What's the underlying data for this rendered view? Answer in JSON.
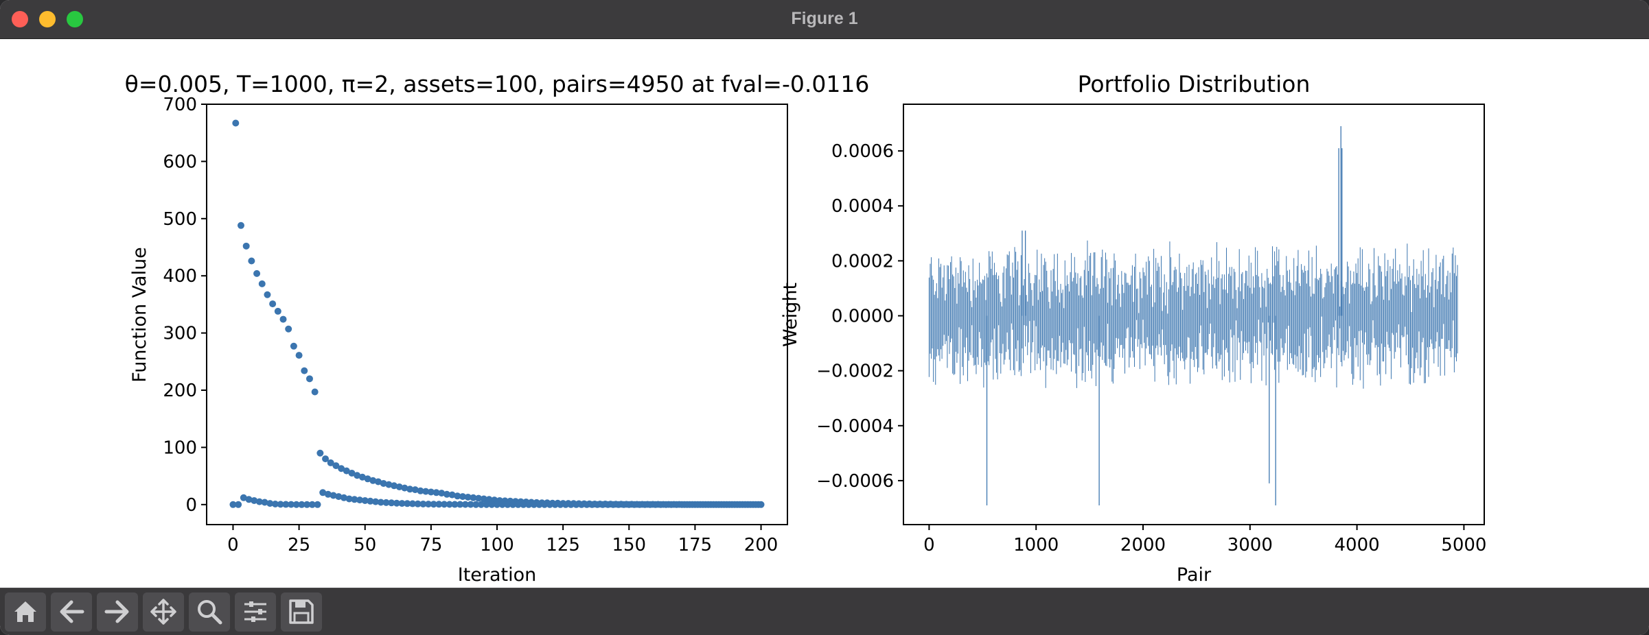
{
  "window": {
    "title": "Figure 1"
  },
  "toolbar": {
    "buttons": [
      {
        "name": "home-icon"
      },
      {
        "name": "back-arrow-icon"
      },
      {
        "name": "forward-arrow-icon"
      },
      {
        "name": "pan-move-icon"
      },
      {
        "name": "zoom-magnifier-icon"
      },
      {
        "name": "configure-subplots-icon"
      },
      {
        "name": "save-floppy-icon"
      }
    ]
  },
  "colors": {
    "series": "#3b75af",
    "frame": "#000000",
    "titlebar": "#3c3b3d",
    "toolbar": "#3a393b"
  },
  "chart_data": [
    {
      "type": "scatter",
      "title": "θ=0.005, T=1000, π=2, assets=100, pairs=4950 at fval=-0.0116",
      "xlabel": "Iteration",
      "ylabel": "Function Value",
      "xlim": [
        -10,
        210
      ],
      "ylim": [
        -35,
        700
      ],
      "xticks": [
        0,
        25,
        50,
        75,
        100,
        125,
        150,
        175,
        200
      ],
      "yticks": [
        0,
        100,
        200,
        300,
        400,
        500,
        600,
        700
      ],
      "grid": false,
      "series": [
        {
          "x": [
            1,
            3,
            5,
            7,
            9,
            11,
            13,
            15,
            17,
            19,
            21,
            23,
            25,
            27,
            29,
            31,
            33,
            35,
            37,
            39,
            41,
            43,
            45,
            47,
            49,
            51,
            53,
            55,
            57,
            59,
            61,
            63,
            65,
            67,
            69,
            71,
            73,
            75,
            77,
            79,
            81,
            83,
            85,
            87,
            89,
            91,
            93,
            95,
            97,
            99,
            101,
            103,
            105,
            107,
            109,
            111,
            113,
            115,
            117,
            119,
            121,
            123,
            125,
            127,
            129,
            131,
            133,
            135,
            137,
            139,
            141,
            143,
            145,
            147,
            149,
            151,
            153,
            155,
            157,
            159,
            161,
            163,
            165,
            167,
            169,
            171,
            173,
            175,
            177,
            179,
            181,
            183,
            185,
            187,
            189,
            191,
            193,
            195,
            197,
            199
          ],
          "y": [
            667,
            488,
            452,
            426,
            404,
            386,
            367,
            351,
            338,
            324,
            307,
            277,
            261,
            234,
            220,
            197,
            90,
            80,
            73,
            68,
            63,
            59,
            55,
            51,
            48,
            45,
            42,
            40,
            37,
            35,
            33,
            31,
            29,
            27,
            26,
            24,
            23,
            22,
            21,
            20,
            18,
            17,
            15,
            14,
            13,
            12,
            11,
            10,
            9,
            8,
            7,
            6.5,
            6,
            5.5,
            5,
            4.5,
            4,
            3.5,
            3,
            3,
            2.5,
            2.5,
            2,
            2,
            1.8,
            1.6,
            1.4,
            1.2,
            1,
            1,
            0.9,
            0.8,
            0.7,
            0.6,
            0.5,
            0.5,
            0.4,
            0.4,
            0.3,
            0.3,
            0.3,
            0.2,
            0.2,
            0.2,
            0.2,
            0.1,
            0.1,
            0.1,
            0.1,
            0.1,
            0.1,
            0.1,
            0.1,
            0,
            0,
            0,
            0,
            0,
            0,
            0
          ]
        },
        {
          "x": [
            0,
            2,
            4,
            6,
            8,
            10,
            12,
            14,
            16,
            18,
            20,
            22,
            24,
            26,
            28,
            30,
            32,
            34,
            36,
            38,
            40,
            42,
            44,
            46,
            48,
            50,
            52,
            54,
            56,
            58,
            60,
            62,
            64,
            66,
            68,
            70,
            72,
            74,
            76,
            78,
            80,
            82,
            84,
            86,
            88,
            90,
            92,
            94,
            96,
            98,
            100,
            102,
            104,
            106,
            108,
            110,
            112,
            114,
            116,
            118,
            120,
            122,
            124,
            126,
            128,
            130,
            132,
            134,
            136,
            138,
            140,
            142,
            144,
            146,
            148,
            150,
            152,
            154,
            156,
            158,
            160,
            162,
            164,
            166,
            168,
            170,
            172,
            174,
            176,
            178,
            180,
            182,
            184,
            186,
            188,
            190,
            192,
            194,
            196,
            198,
            200
          ],
          "y": [
            0,
            0,
            12,
            9,
            7,
            5,
            4,
            2,
            1,
            0.5,
            0.3,
            0.2,
            0.1,
            0,
            0,
            0,
            0,
            21,
            18,
            16,
            14,
            12,
            10,
            9,
            8,
            7,
            6,
            5,
            4,
            3.5,
            3,
            2.5,
            2,
            1.8,
            1.5,
            1.2,
            1,
            0.8,
            0.7,
            0.6,
            0.5,
            0.4,
            0.3,
            0.3,
            0.2,
            0.2,
            0.1,
            0.1,
            0.1,
            0.1,
            0.1,
            0.1,
            0,
            0,
            0,
            0,
            0,
            0,
            0,
            0,
            0,
            0,
            0,
            0,
            0,
            0,
            0,
            0,
            0,
            0,
            0,
            0,
            0,
            0,
            0,
            0,
            0,
            0,
            0,
            0,
            0,
            0,
            0,
            0,
            0,
            0,
            0,
            0,
            0,
            0,
            0,
            0,
            0,
            0,
            0,
            0,
            0,
            0,
            0,
            0,
            0
          ]
        }
      ]
    },
    {
      "type": "bar",
      "title": "Portfolio Distribution",
      "xlabel": "Pair",
      "ylabel": "Weight",
      "xlim": [
        -240,
        5190
      ],
      "ylim": [
        -0.00076,
        0.00077
      ],
      "xticks": [
        0,
        1000,
        2000,
        3000,
        4000,
        5000
      ],
      "yticks": [
        -0.0006,
        -0.0004,
        -0.0002,
        0.0,
        0.0002,
        0.0004,
        0.0006
      ],
      "ytick_labels": [
        "−0.0006",
        "−0.0004",
        "−0.0002",
        "0.0000",
        "0.0002",
        "0.0004",
        "0.0006"
      ],
      "grid": false,
      "n_pairs": 4950,
      "typical_weight_range": [
        -0.00028,
        0.00028
      ],
      "notable_spikes": [
        {
          "x": 540,
          "y": -0.00069
        },
        {
          "x": 870,
          "y": 0.00031
        },
        {
          "x": 900,
          "y": 0.00031
        },
        {
          "x": 1590,
          "y": -0.00069
        },
        {
          "x": 3180,
          "y": -0.00061
        },
        {
          "x": 3240,
          "y": -0.00069
        },
        {
          "x": 3830,
          "y": 0.00061
        },
        {
          "x": 3850,
          "y": 0.00069
        },
        {
          "x": 3860,
          "y": 0.00061
        }
      ]
    }
  ]
}
